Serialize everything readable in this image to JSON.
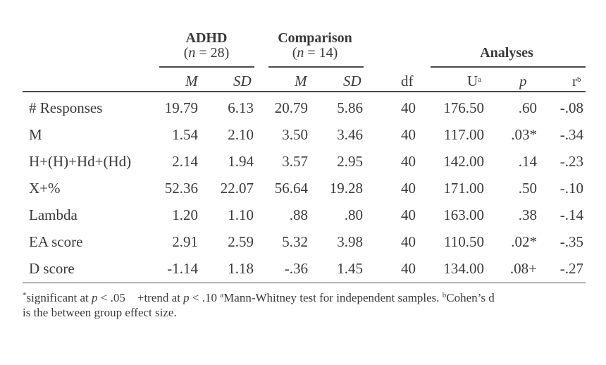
{
  "groups": {
    "adhd": {
      "title": "ADHD",
      "n_prefix": "(",
      "n_var": "n",
      "n_suffix": " = 28)"
    },
    "comparison": {
      "title": "Comparison",
      "n_prefix": "(",
      "n_var": "n",
      "n_suffix": " = 14)"
    },
    "analyses": {
      "title": "Analyses"
    }
  },
  "subheaders": {
    "adhd_m": "M",
    "adhd_sd": "SD",
    "comp_m": "M",
    "comp_sd": "SD",
    "df": "df",
    "u": "U",
    "u_sup": "a",
    "p": "p",
    "r": "r",
    "r_sup": "b"
  },
  "rows": [
    {
      "label": "# Responses",
      "adhd_m": "19.79",
      "adhd_sd": "6.13",
      "comp_m": "20.79",
      "comp_sd": "5.86",
      "df": "40",
      "u": "176.50",
      "p": ".60",
      "r": "-.08"
    },
    {
      "label": "M",
      "adhd_m": "1.54",
      "adhd_sd": "2.10",
      "comp_m": "3.50",
      "comp_sd": "3.46",
      "df": "40",
      "u": "117.00",
      "p": ".03*",
      "r": "-.34"
    },
    {
      "label": "H+(H)+Hd+(Hd)",
      "adhd_m": "2.14",
      "adhd_sd": "1.94",
      "comp_m": "3.57",
      "comp_sd": "2.95",
      "df": "40",
      "u": "142.00",
      "p": ".14",
      "r": "-.23"
    },
    {
      "label": "X+%",
      "adhd_m": "52.36",
      "adhd_sd": "22.07",
      "comp_m": "56.64",
      "comp_sd": "19.28",
      "df": "40",
      "u": "171.00",
      "p": ".50",
      "r": "-.10"
    },
    {
      "label": "Lambda",
      "adhd_m": "1.20",
      "adhd_sd": "1.10",
      "comp_m": ".88",
      "comp_sd": ".80",
      "df": "40",
      "u": "163.00",
      "p": ".38",
      "r": "-.14"
    },
    {
      "label": "EA score",
      "adhd_m": "2.91",
      "adhd_sd": "2.59",
      "comp_m": "5.32",
      "comp_sd": "3.98",
      "df": "40",
      "u": "110.50",
      "p": ".02*",
      "r": "-.35"
    },
    {
      "label": "D score",
      "adhd_m": "-1.14",
      "adhd_sd": "1.18",
      "comp_m": "-.36",
      "comp_sd": "1.45",
      "df": "40",
      "u": "134.00",
      "p": ".08+",
      "r": "-.27"
    }
  ],
  "footnote": {
    "sig_mark": "*",
    "sig_text": "significant at ",
    "sig_var": "p",
    "sig_cond": " < .05",
    "trend_text": "+trend at ",
    "trend_var": "p",
    "trend_cond": " < .10 ",
    "a_mark": "a",
    "a_text": "Mann-Whitney test for independent samples. ",
    "b_mark": "b",
    "b_text": "Cohen’s d",
    "line2": "is the between group effect size."
  }
}
